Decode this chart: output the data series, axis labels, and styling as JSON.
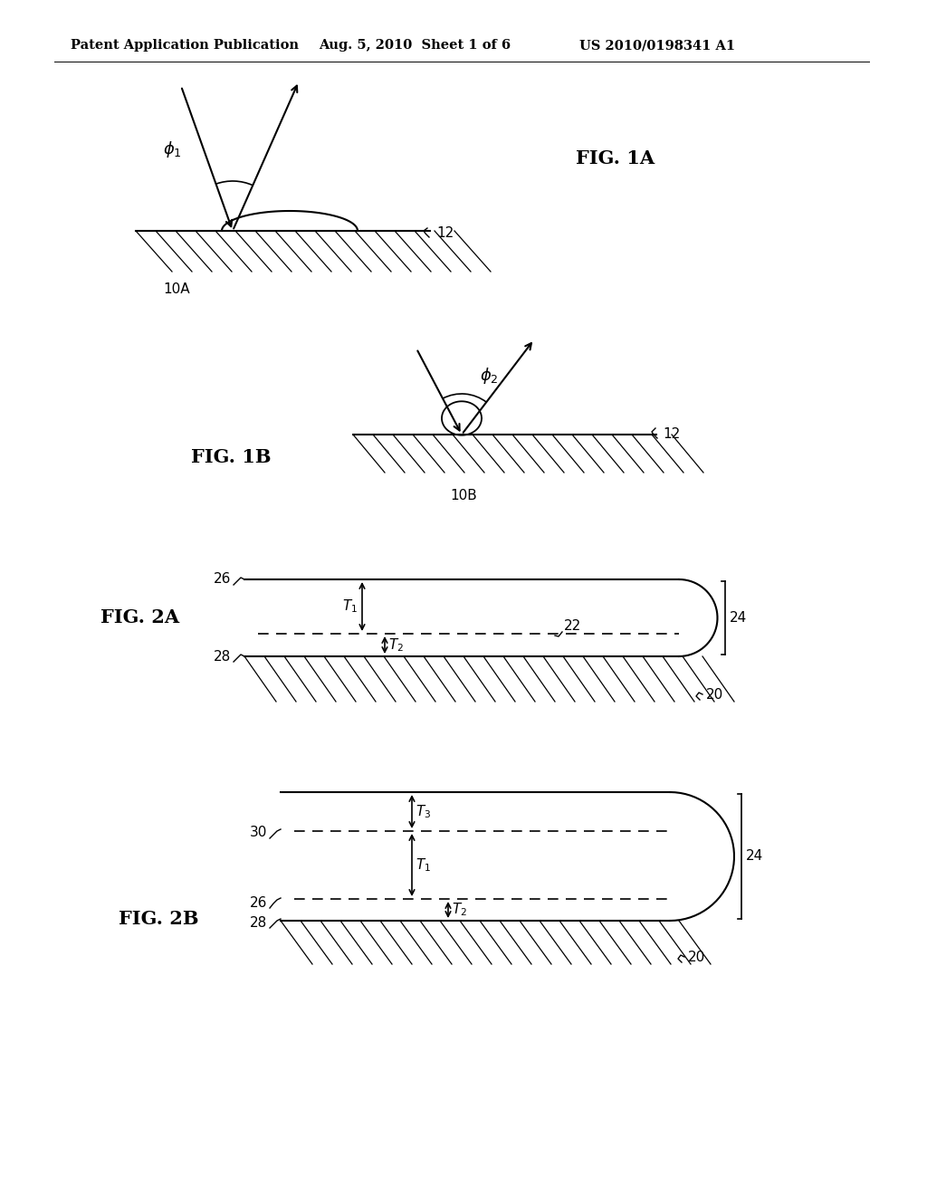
{
  "bg_color": "#ffffff",
  "header_text": "Patent Application Publication",
  "header_date": "Aug. 5, 2010",
  "header_sheet": "Sheet 1 of 6",
  "header_patent": "US 2010/0198341 A1",
  "fig1a_label": "FIG. 1A",
  "fig1b_label": "FIG. 1B",
  "fig2a_label": "FIG. 2A",
  "fig2b_label": "FIG. 2B"
}
